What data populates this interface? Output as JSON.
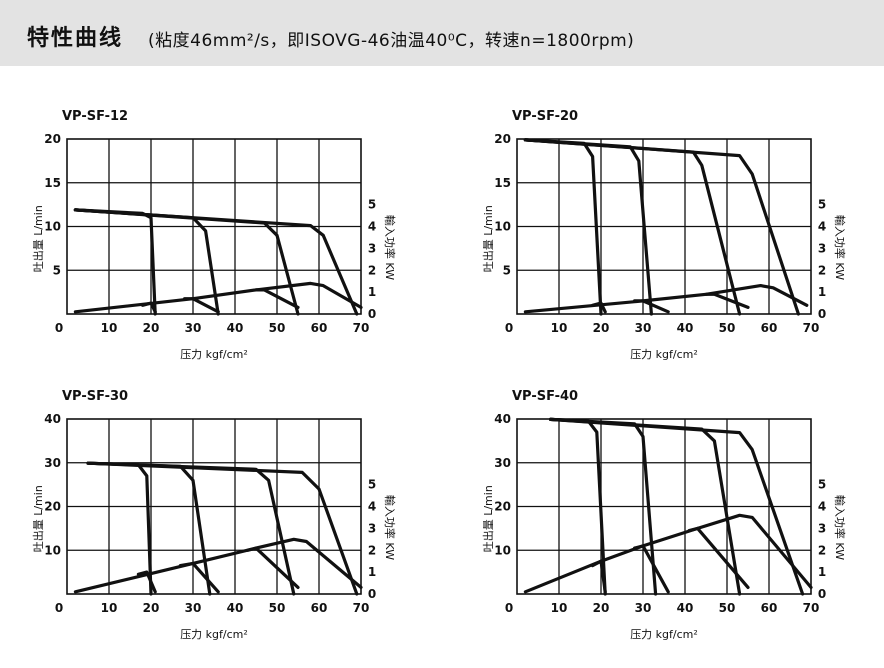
{
  "header": {
    "title": "特性曲线",
    "subtitle": "(粘度46mm²/s，即ISOVG-46油温40⁰C，转速n=1800rpm)"
  },
  "chart_data": [
    {
      "type": "line",
      "title": "VP-SF-12",
      "xlabel": "压力 kgf/cm²",
      "ylabel": "吐出量 L/min",
      "y2label": "輸入功率 KW",
      "xlim": [
        0,
        70
      ],
      "ylim": [
        0,
        20
      ],
      "y2lim": [
        0,
        8
      ],
      "x_ticks": [
        0,
        10,
        20,
        30,
        40,
        50,
        60,
        70
      ],
      "y_ticks": [
        0,
        5,
        10,
        15,
        20
      ],
      "y2_ticks": [
        0,
        1,
        2,
        3,
        4,
        5
      ],
      "grid": true,
      "series": [
        {
          "axis": "flow",
          "points": [
            [
              2,
              11.9
            ],
            [
              18,
              11.5
            ],
            [
              20,
              11.0
            ],
            [
              21,
              0
            ]
          ]
        },
        {
          "axis": "flow",
          "points": [
            [
              2,
              11.9
            ],
            [
              30,
              11.0
            ],
            [
              33,
              9.5
            ],
            [
              36,
              0
            ]
          ]
        },
        {
          "axis": "flow",
          "points": [
            [
              2,
              11.9
            ],
            [
              47,
              10.4
            ],
            [
              50,
              9.0
            ],
            [
              55,
              0
            ]
          ]
        },
        {
          "axis": "flow",
          "points": [
            [
              2,
              11.9
            ],
            [
              58,
              10.1
            ],
            [
              61,
              9.0
            ],
            [
              69,
              0
            ]
          ]
        },
        {
          "axis": "power",
          "points": [
            [
              2,
              0.1
            ],
            [
              30,
              0.7
            ],
            [
              45,
              1.1
            ],
            [
              58,
              1.4
            ],
            [
              61,
              1.3
            ],
            [
              70,
              0.3
            ]
          ]
        },
        {
          "axis": "power",
          "points": [
            [
              18,
              0.4
            ],
            [
              20,
              0.5
            ],
            [
              21,
              0.1
            ]
          ]
        },
        {
          "axis": "power",
          "points": [
            [
              28,
              0.7
            ],
            [
              30,
              0.7
            ],
            [
              36,
              0.1
            ]
          ]
        },
        {
          "axis": "power",
          "points": [
            [
              45,
              1.1
            ],
            [
              47,
              1.1
            ],
            [
              55,
              0.3
            ]
          ]
        }
      ]
    },
    {
      "type": "line",
      "title": "VP-SF-20",
      "xlabel": "压力 kgf/cm²",
      "ylabel": "吐出量 L/min",
      "y2label": "輸入功率 KW",
      "xlim": [
        0,
        70
      ],
      "ylim": [
        0,
        20
      ],
      "y2lim": [
        0,
        8
      ],
      "x_ticks": [
        0,
        10,
        20,
        30,
        40,
        50,
        60,
        70
      ],
      "y_ticks": [
        0,
        5,
        10,
        15,
        20
      ],
      "y2_ticks": [
        0,
        1,
        2,
        3,
        4,
        5
      ],
      "grid": true,
      "series": [
        {
          "axis": "flow",
          "points": [
            [
              2,
              19.9
            ],
            [
              16,
              19.5
            ],
            [
              18,
              18.0
            ],
            [
              20,
              0
            ]
          ]
        },
        {
          "axis": "flow",
          "points": [
            [
              2,
              19.9
            ],
            [
              27,
              19.1
            ],
            [
              29,
              17.5
            ],
            [
              32,
              0
            ]
          ]
        },
        {
          "axis": "flow",
          "points": [
            [
              2,
              19.9
            ],
            [
              42,
              18.5
            ],
            [
              44,
              17.0
            ],
            [
              53,
              0
            ]
          ]
        },
        {
          "axis": "flow",
          "points": [
            [
              2,
              19.9
            ],
            [
              53,
              18.1
            ],
            [
              56,
              16.0
            ],
            [
              67,
              0
            ]
          ]
        },
        {
          "axis": "power",
          "points": [
            [
              2,
              0.1
            ],
            [
              30,
              0.6
            ],
            [
              45,
              0.9
            ],
            [
              58,
              1.3
            ],
            [
              61,
              1.2
            ],
            [
              69,
              0.4
            ]
          ]
        },
        {
          "axis": "power",
          "points": [
            [
              18,
              0.4
            ],
            [
              20,
              0.5
            ],
            [
              21,
              0.1
            ]
          ]
        },
        {
          "axis": "power",
          "points": [
            [
              28,
              0.6
            ],
            [
              30,
              0.6
            ],
            [
              36,
              0.1
            ]
          ]
        },
        {
          "axis": "power",
          "points": [
            [
              45,
              0.9
            ],
            [
              47,
              0.9
            ],
            [
              55,
              0.3
            ]
          ]
        }
      ]
    },
    {
      "type": "line",
      "title": "VP-SF-30",
      "xlabel": "压力 kgf/cm²",
      "ylabel": "吐出量 L/min",
      "y2label": "輸入功率 KW",
      "xlim": [
        0,
        70
      ],
      "ylim": [
        0,
        40
      ],
      "y2lim": [
        0,
        8
      ],
      "x_ticks": [
        0,
        10,
        20,
        30,
        40,
        50,
        60,
        70
      ],
      "y_ticks": [
        0,
        10,
        20,
        30,
        40
      ],
      "y2_ticks": [
        0,
        1,
        2,
        3,
        4,
        5
      ],
      "grid": true,
      "series": [
        {
          "axis": "flow",
          "points": [
            [
              5,
              29.9
            ],
            [
              17,
              29.5
            ],
            [
              19,
              27.0
            ],
            [
              20,
              0
            ]
          ]
        },
        {
          "axis": "flow",
          "points": [
            [
              5,
              29.9
            ],
            [
              27,
              29.2
            ],
            [
              30,
              26.0
            ],
            [
              34,
              0
            ]
          ]
        },
        {
          "axis": "flow",
          "points": [
            [
              5,
              29.9
            ],
            [
              45,
              28.5
            ],
            [
              48,
              26.0
            ],
            [
              54,
              0
            ]
          ]
        },
        {
          "axis": "flow",
          "points": [
            [
              5,
              29.9
            ],
            [
              56,
              27.8
            ],
            [
              60,
              24.0
            ],
            [
              69,
              0
            ]
          ]
        },
        {
          "axis": "power",
          "points": [
            [
              2,
              0.1
            ],
            [
              30,
              1.4
            ],
            [
              45,
              2.1
            ],
            [
              54,
              2.5
            ],
            [
              57,
              2.4
            ],
            [
              70,
              0.3
            ]
          ]
        },
        {
          "axis": "power",
          "points": [
            [
              17,
              0.9
            ],
            [
              19,
              1.0
            ],
            [
              21,
              0.1
            ]
          ]
        },
        {
          "axis": "power",
          "points": [
            [
              27,
              1.3
            ],
            [
              30,
              1.4
            ],
            [
              36,
              0.1
            ]
          ]
        },
        {
          "axis": "power",
          "points": [
            [
              43,
              2.0
            ],
            [
              45,
              2.1
            ],
            [
              55,
              0.3
            ]
          ]
        }
      ]
    },
    {
      "type": "line",
      "title": "VP-SF-40",
      "xlabel": "压力 kgf/cm²",
      "ylabel": "吐出量 L/min",
      "y2label": "輸入功率 KW",
      "xlim": [
        0,
        70
      ],
      "ylim": [
        0,
        40
      ],
      "y2lim": [
        0,
        8
      ],
      "x_ticks": [
        0,
        10,
        20,
        30,
        40,
        50,
        60,
        70
      ],
      "y_ticks": [
        0,
        10,
        20,
        30,
        40
      ],
      "y2_ticks": [
        0,
        1,
        2,
        3,
        4,
        5
      ],
      "grid": true,
      "series": [
        {
          "axis": "flow",
          "points": [
            [
              8,
              39.9
            ],
            [
              17,
              39.5
            ],
            [
              19,
              37.0
            ],
            [
              21,
              0
            ]
          ]
        },
        {
          "axis": "flow",
          "points": [
            [
              8,
              39.9
            ],
            [
              28,
              38.9
            ],
            [
              30,
              36.0
            ],
            [
              33,
              0
            ]
          ]
        },
        {
          "axis": "flow",
          "points": [
            [
              8,
              39.9
            ],
            [
              44,
              37.7
            ],
            [
              47,
              35.0
            ],
            [
              53,
              0
            ]
          ]
        },
        {
          "axis": "flow",
          "points": [
            [
              8,
              39.9
            ],
            [
              53,
              36.9
            ],
            [
              56,
              33.0
            ],
            [
              68,
              0
            ]
          ]
        },
        {
          "axis": "power",
          "points": [
            [
              2,
              0.1
            ],
            [
              20,
              1.5
            ],
            [
              30,
              2.2
            ],
            [
              43,
              3.0
            ],
            [
              53,
              3.6
            ],
            [
              56,
              3.5
            ],
            [
              70,
              0.3
            ]
          ]
        },
        {
          "axis": "power",
          "points": [
            [
              18,
              1.3
            ],
            [
              20,
              1.5
            ],
            [
              21,
              0.1
            ]
          ]
        },
        {
          "axis": "power",
          "points": [
            [
              28,
              2.1
            ],
            [
              30,
              2.2
            ],
            [
              36,
              0.1
            ]
          ]
        },
        {
          "axis": "power",
          "points": [
            [
              41,
              2.9
            ],
            [
              43,
              3.0
            ],
            [
              55,
              0.3
            ]
          ]
        }
      ]
    }
  ]
}
